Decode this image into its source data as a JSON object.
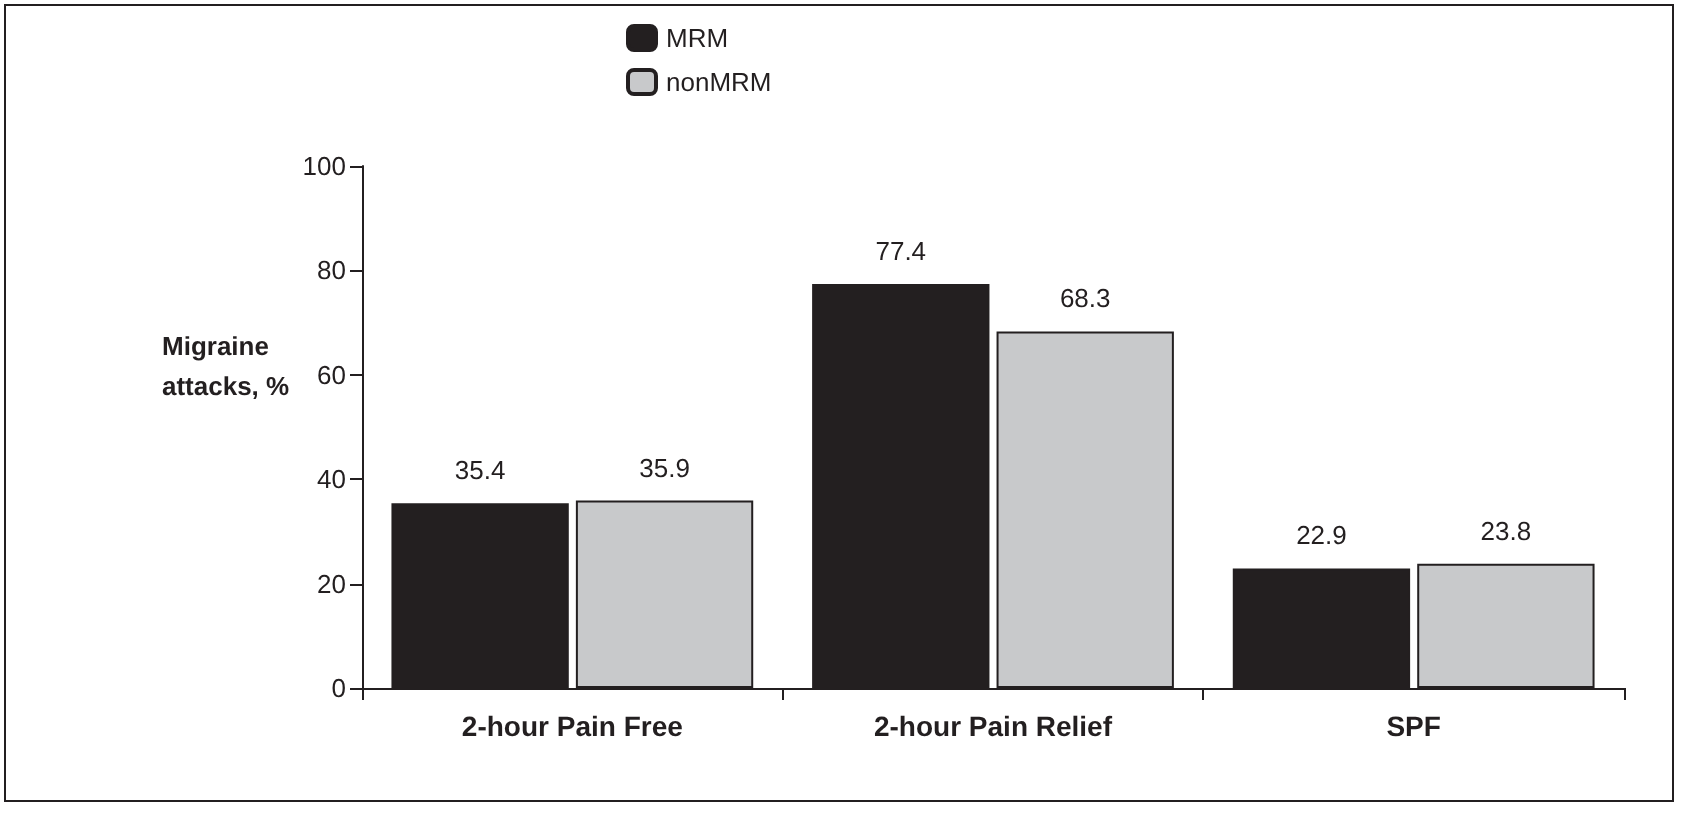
{
  "chart_data": {
    "type": "bar",
    "ylabel": "Migraine\nattacks, %",
    "categories": [
      "2-hour Pain Free",
      "2-hour Pain Relief",
      "SPF"
    ],
    "series": [
      {
        "name": "MRM",
        "color": "#231f20",
        "values": [
          35.4,
          77.4,
          22.9
        ]
      },
      {
        "name": "nonMRM",
        "color": "#c8c9cb",
        "values": [
          35.9,
          68.3,
          23.8
        ]
      }
    ],
    "ylim": [
      0,
      100
    ],
    "yticks": [
      0,
      20,
      40,
      60,
      80,
      100
    ],
    "data_labels": true,
    "grid": false,
    "legend": "top"
  }
}
